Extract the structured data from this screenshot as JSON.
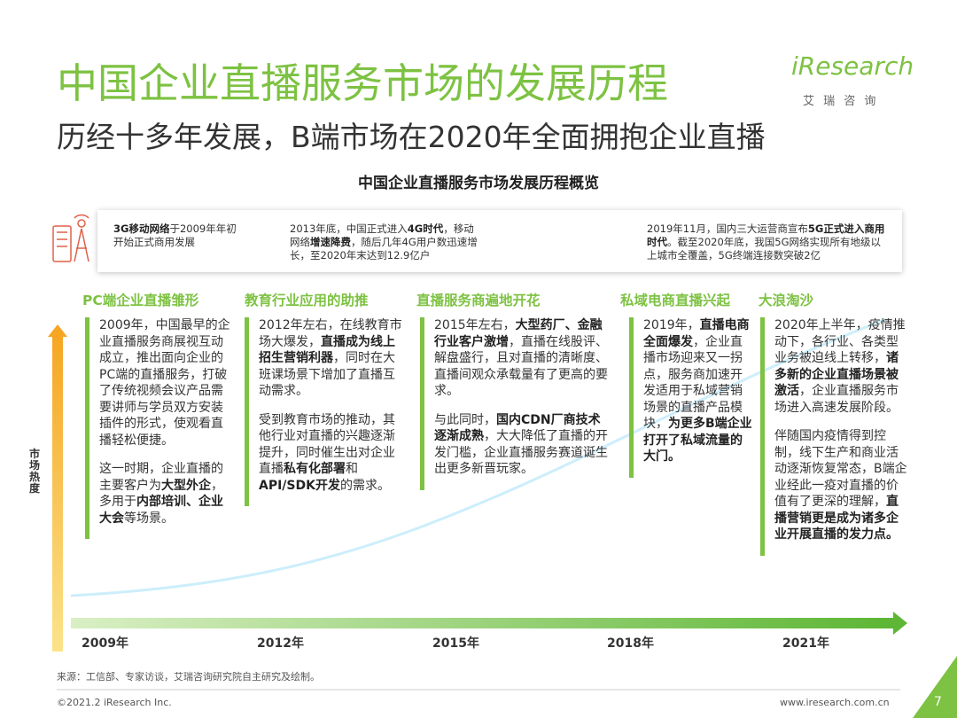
{
  "header": {
    "title": "中国企业直播服务市场的发展历程",
    "subtitle": "历经十多年发展，B端市场在2020年全面拥抱企业直播",
    "logo": "iResearch",
    "logo_sub": "艾 瑞 咨 询"
  },
  "figure_title": "中国企业直播服务市场发展历程概览",
  "network_box": [
    {
      "runs": [
        {
          "text": "3G移动网络",
          "bold": true
        },
        {
          "text": "于2009年年初开始正式商用发展",
          "bold": false
        }
      ]
    },
    {
      "runs": [
        {
          "text": "2013年底，中国正式进入",
          "bold": false
        },
        {
          "text": "4G时代",
          "bold": true
        },
        {
          "text": "，移动网络",
          "bold": false
        },
        {
          "text": "增速降费",
          "bold": true
        },
        {
          "text": "，随后几年4G用户数迅速增长，至2020年末达到12.9亿户",
          "bold": false
        }
      ]
    },
    {
      "runs": [
        {
          "text": "2019年11月，国内三大运营商宣布",
          "bold": false
        },
        {
          "text": "5G正式进入商用时代",
          "bold": true
        },
        {
          "text": "。截至2020年底，我国5G网络实现所有地级以上城市全覆盖，5G终端连接数突破2亿",
          "bold": false
        }
      ]
    }
  ],
  "stages": [
    {
      "heading": "PC端企业直播雏形",
      "paragraphs": [
        [
          {
            "text": "2009年，中国最早的企业直播服务商展视互动成立，推出面向企业的PC端的直播服务，打破了传统视频会议产品需要讲师与学员双方安装插件的形式，使观看直播轻松便捷。",
            "bold": false
          }
        ],
        [
          {
            "text": "这一时期，企业直播的主要客户为",
            "bold": false
          },
          {
            "text": "大型外企",
            "bold": true
          },
          {
            "text": "，多用于",
            "bold": false
          },
          {
            "text": "内部培训、企业大会",
            "bold": true
          },
          {
            "text": "等场景。",
            "bold": false
          }
        ]
      ]
    },
    {
      "heading": "教育行业应用的助推",
      "paragraphs": [
        [
          {
            "text": "2012年左右，在线教育市场大爆发，",
            "bold": false
          },
          {
            "text": "直播成为线上招生营销利器",
            "bold": true
          },
          {
            "text": "，同时在大班课场景下增加了直播互动需求。",
            "bold": false
          }
        ],
        [
          {
            "text": "受到教育市场的推动，其他行业对直播的兴趣逐渐提升，同时催生出对企业直播",
            "bold": false
          },
          {
            "text": "私有化部署",
            "bold": true
          },
          {
            "text": "和",
            "bold": false
          },
          {
            "text": "API/SDK开发",
            "bold": true
          },
          {
            "text": "的需求。",
            "bold": false
          }
        ]
      ]
    },
    {
      "heading": "直播服务商遍地开花",
      "paragraphs": [
        [
          {
            "text": "2015年左右，",
            "bold": false
          },
          {
            "text": "大型药厂、金融行业客户激增",
            "bold": true
          },
          {
            "text": "，直播在线股评、解盘盛行，且对直播的清晰度、直播间观众承载量有了更高的要求。",
            "bold": false
          }
        ],
        [
          {
            "text": "与此同时，",
            "bold": false
          },
          {
            "text": "国内CDN厂商技术逐渐成熟",
            "bold": true
          },
          {
            "text": "，大大降低了直播的开发门槛，企业直播服务赛道诞生出更多新晋玩家。",
            "bold": false
          }
        ]
      ]
    },
    {
      "heading": "私域电商直播兴起",
      "paragraphs": [
        [
          {
            "text": "2019年，",
            "bold": false
          },
          {
            "text": "直播电商全面爆发",
            "bold": true
          },
          {
            "text": "，企业直播市场迎来又一拐点，服务商加速开发适用于私域营销场景的直播产品模块，",
            "bold": false
          },
          {
            "text": "为更多B端企业打开了私域流量的大门。",
            "bold": true
          }
        ]
      ]
    },
    {
      "heading": "大浪淘沙",
      "paragraphs": [
        [
          {
            "text": "2020年上半年，疫情推动下，各行业、各类型业务被迫线上转移，",
            "bold": false
          },
          {
            "text": "诸多新的企业直播场景被激活",
            "bold": true
          },
          {
            "text": "，企业直播服务市场进入高速发展阶段。",
            "bold": false
          }
        ],
        [
          {
            "text": "伴随国内疫情得到控制，线下生产和商业活动逐渐恢复常态，B端企业经此一疫对直播的价值有了更深的理解，",
            "bold": false
          },
          {
            "text": "直播营销更是成为诸多企业开展直播的发力点。",
            "bold": true
          }
        ]
      ]
    }
  ],
  "y_axis_label": "市场热度",
  "timeline": [
    "2009年",
    "2012年",
    "2015年",
    "2018年",
    "2021年"
  ],
  "footer": {
    "source": "来源：工信部、专家访谈，艾瑞咨询研究院自主研究及绘制。",
    "copyright": "©2021.2 iResearch Inc.",
    "website": "www.iresearch.com.cn",
    "page": "7"
  }
}
